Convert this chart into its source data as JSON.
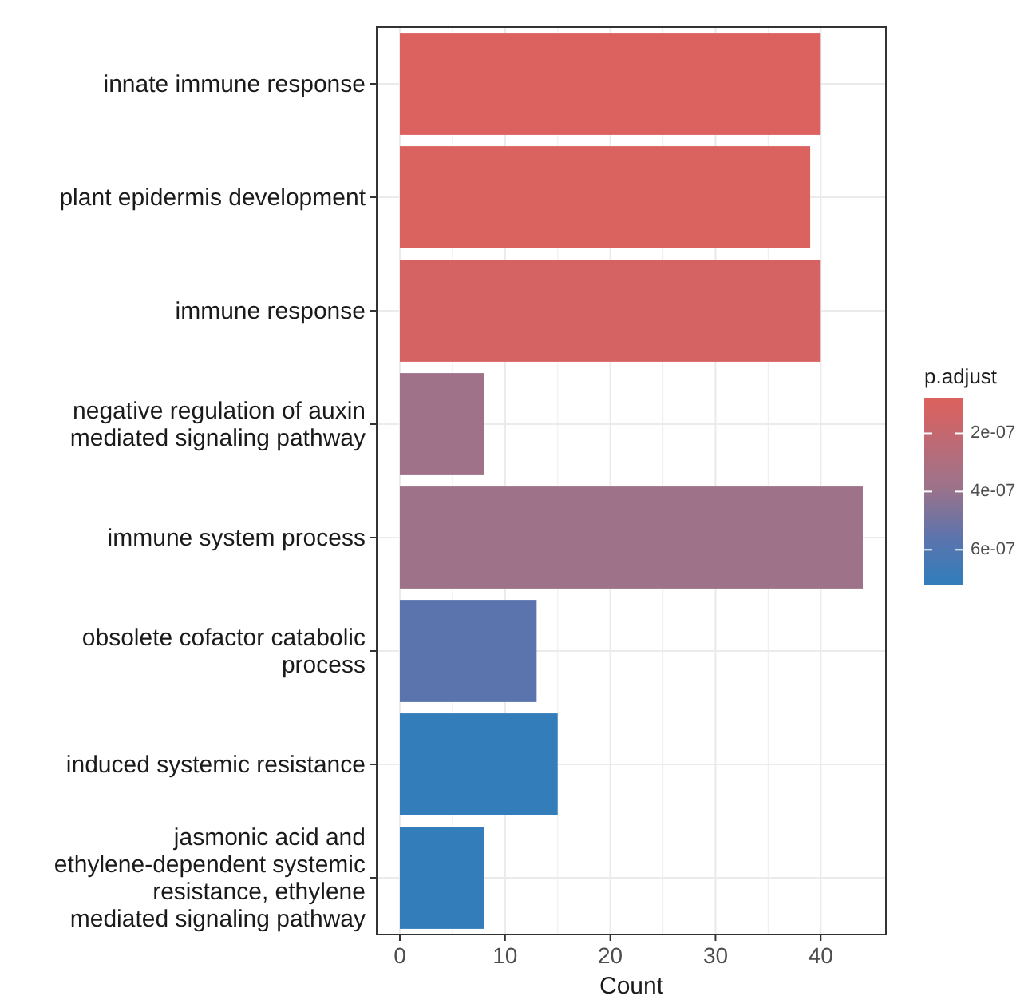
{
  "chart_data": {
    "type": "bar",
    "orientation": "horizontal",
    "xlabel": "Count",
    "clabel": "p.adjust",
    "categories": [
      "innate immune response",
      "plant epidermis development",
      "immune response",
      "negative regulation of auxin\nmediated signaling pathway",
      "immune system process",
      "obsolete cofactor catabolic\nprocess",
      "induced systemic resistance",
      "jasmonic acid and\nethylene-dependent systemic\nresistance, ethylene\nmediated signaling pathway"
    ],
    "values": [
      40,
      39,
      40,
      8,
      44,
      13,
      15,
      8
    ],
    "colors": [
      "#db625e",
      "#da625f",
      "#d66363",
      "#9f7289",
      "#9e7288",
      "#5c74ae",
      "#327dba",
      "#327dba"
    ],
    "cvalues": [
      8e-08,
      9e-08,
      1.2e-07,
      3.7e-07,
      3.8e-07,
      5.6e-07,
      7.1e-07,
      7.2e-07
    ],
    "xlim": [
      -2.2,
      46.2
    ],
    "xticks": [
      0,
      10,
      20,
      30,
      40
    ],
    "clim": [
      7.8e-08,
      7.2e-07
    ],
    "cticks": [
      {
        "value": 2e-07,
        "label": "2e-07"
      },
      {
        "value": 4e-07,
        "label": "4e-07"
      },
      {
        "value": 6e-07,
        "label": "6e-07"
      }
    ],
    "grid": true
  }
}
